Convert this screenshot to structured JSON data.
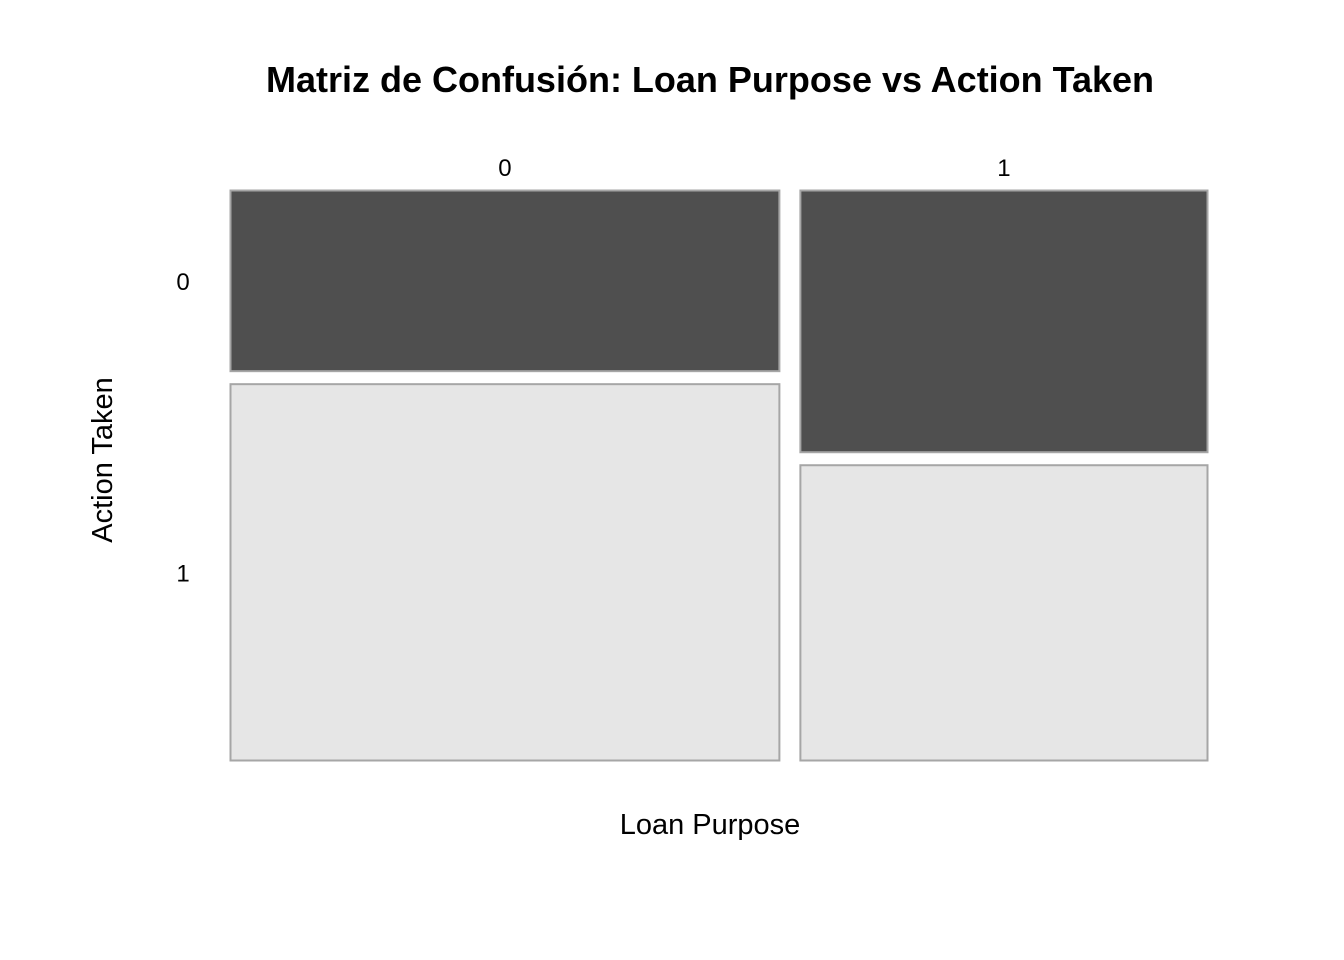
{
  "chart_data": {
    "type": "mosaic",
    "title": "Matriz de Confusión: Loan Purpose vs Action Taken",
    "xlabel": "Loan Purpose",
    "ylabel": "Action Taken",
    "x_categories": [
      "0",
      "1"
    ],
    "y_categories": [
      "0",
      "1"
    ],
    "column_shares": [
      0.574,
      0.426
    ],
    "conditional_shares": [
      {
        "x": "0",
        "y_0": 0.325,
        "y_1": 0.675
      },
      {
        "x": "1",
        "y_0": 0.47,
        "y_1": 0.53
      }
    ],
    "colors": {
      "y_0": "#4f4f4f",
      "y_1": "#e6e6e6",
      "border": "#a6a6a6"
    },
    "grid": false,
    "legend": "none"
  }
}
